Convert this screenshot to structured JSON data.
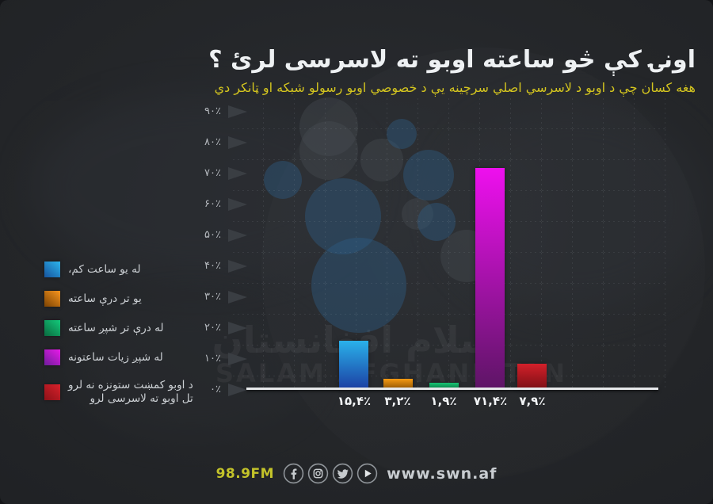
{
  "title": "اونۍ کې څو ساعته اوبو ته لاسرسی لرئ ؟",
  "subtitle": "هغه کسان چې د اوبو د لاسرسي اصلي سرچينه يې د خصوصي اوبو رسولو شبکه او ټانکر دي",
  "watermark": {
    "line_ar": "سلام افغانستان",
    "line_en": "SALAM AFGHANISTAN"
  },
  "legend": {
    "items": [
      {
        "label": "له يو ساعت کم،",
        "color_from": "#17549e",
        "color_to": "#2cb4ec"
      },
      {
        "label": "يو تر درې ساعته",
        "color_from": "#7c4303",
        "color_to": "#f7941e"
      },
      {
        "label": "له درې تر شپږ ساعته",
        "color_from": "#0a6b40",
        "color_to": "#13c97a"
      },
      {
        "label": "له شپږ زيات ساعتونه",
        "color_from": "#6f1d9c",
        "color_to": "#e81ae8"
      },
      {
        "label": "د اوبو کمښت ستونزه نه لرو",
        "label2": "تل اوبو ته لاسرسی لرو",
        "color_from": "#8e1118",
        "color_to": "#d7212b"
      }
    ]
  },
  "chart_data": {
    "type": "bar",
    "title": "اونۍ کې څو ساعته اوبو ته لاسرسی لرئ ؟",
    "subtitle": "هغه کسان چې د اوبو د لاسرسي اصلي سرچينه يې د خصوصي اوبو رسولو شبکه او ټانکر دي",
    "categories": [
      "له يو ساعت کم",
      "يو تر درې ساعته",
      "له درې تر شپږ ساعته",
      "له شپږ زيات ساعتونه",
      "د اوبو کمښت ستونزه نه لرو / تل اوبو ته لاسرسی لرو"
    ],
    "values": [
      15.4,
      3.2,
      1.9,
      71.4,
      7.9
    ],
    "value_labels": [
      "۱۵,۴٪",
      "۳,۲٪",
      "۱,۹٪",
      "۷۱,۴٪",
      "۷,۹٪"
    ],
    "bar_colors": [
      [
        "#2ab1ea",
        "#1c41a4"
      ],
      [
        "#f59b13",
        "#995a05"
      ],
      [
        "#16c273",
        "#0c854c"
      ],
      [
        "#ee10ee",
        "#5e1566"
      ],
      [
        "#d3202a",
        "#7e1016"
      ]
    ],
    "y_ticks": [
      "۹۰٪",
      "۸۰٪",
      "۷۰٪",
      "۶۰٪",
      "۵۰٪",
      "۴۰٪",
      "۳۰٪",
      "۲۰٪",
      "۱۰٪",
      "۰٪"
    ],
    "y_tick_values": [
      90,
      80,
      70,
      60,
      50,
      40,
      30,
      20,
      10,
      0
    ],
    "ylim": [
      0,
      95
    ],
    "grid": "dotted",
    "legend_position": "left",
    "background": "#242629"
  },
  "footer": {
    "station": "98.9FM",
    "website": "www.swn.af",
    "icons": [
      "facebook-icon",
      "instagram-icon",
      "twitter-icon",
      "play-icon"
    ],
    "accent_color": "#c3c32a"
  }
}
